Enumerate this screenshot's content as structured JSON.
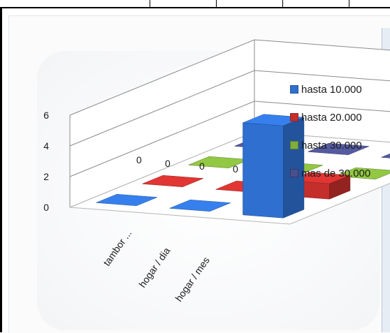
{
  "chart_data": {
    "type": "bar",
    "subtype": "3d-column",
    "title": "",
    "xlabel": "",
    "ylabel": "",
    "categories": [
      "tambor ...",
      "hogar / dia",
      "hogar / mes"
    ],
    "ylim": [
      0,
      6
    ],
    "yticks": [
      "0",
      "2",
      "4",
      "6"
    ],
    "grid": true,
    "legend_position": "right",
    "series": [
      {
        "name": "hasta 10.000",
        "values": [
          0,
          0,
          6
        ],
        "color": "#2f6fcf"
      },
      {
        "name": "hasta 20.000",
        "values": [
          0,
          0,
          1
        ],
        "color": "#c42f2c"
      },
      {
        "name": "hasta 30.000",
        "values": [
          0,
          0,
          0
        ],
        "color": "#7fae3a"
      },
      {
        "name": "mas de 30.000",
        "values": [
          0,
          0,
          0
        ],
        "color": "#4a4f8c"
      }
    ],
    "data_labels": [
      "0",
      "0",
      "0",
      "0"
    ]
  }
}
